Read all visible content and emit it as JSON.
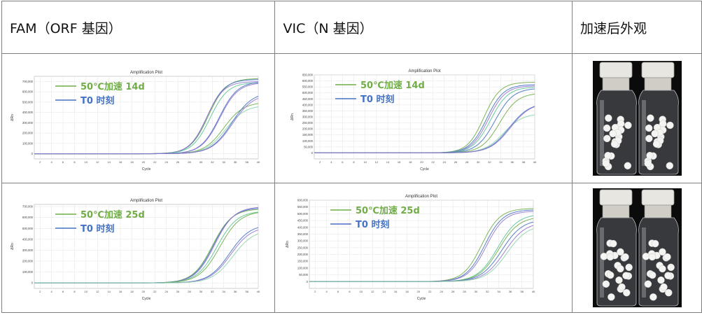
{
  "header": {
    "col1": "FAM（ORF 基因）",
    "col2": "VIC（N  基因）",
    "col3": "加速后外观"
  },
  "legend_colors": {
    "accelerated": "#70ad47",
    "baseline": "#4472c4"
  },
  "photo_alt": "bottles-of-white-tablets",
  "chart_data": [
    {
      "type": "line",
      "title": "Amplification Plot",
      "xlabel": "Cycle",
      "ylabel": "ΔRn",
      "xlim": [
        1,
        40
      ],
      "ylim": [
        -50000,
        750000
      ],
      "xticks": [
        "2",
        "4",
        "6",
        "8",
        "10",
        "12",
        "14",
        "16",
        "18",
        "20",
        "22",
        "24",
        "26",
        "28",
        "30",
        "32",
        "34",
        "36",
        "38",
        "40"
      ],
      "yticks": [
        "0",
        "100,000",
        "200,000",
        "300,000",
        "400,000",
        "500,000",
        "600,000",
        "700,000"
      ],
      "ytick_values": [
        0,
        100000,
        200000,
        300000,
        400000,
        500000,
        600000,
        700000
      ],
      "legend": [
        {
          "label": "50℃加速 14d",
          "color": "#70ad47"
        },
        {
          "label": "T0 时刻",
          "color": "#4472c4"
        }
      ],
      "series": [
        {
          "color": "#70ad47",
          "plateau": 730000,
          "midpoint": 31.3,
          "slope": 1.55
        },
        {
          "color": "#4472c4",
          "plateau": 720000,
          "midpoint": 31.1,
          "slope": 1.5
        },
        {
          "color": "#9575cd",
          "plateau": 700000,
          "midpoint": 31.0,
          "slope": 1.5
        },
        {
          "color": "#56c596",
          "plateau": 690000,
          "midpoint": 31.6,
          "slope": 1.55
        },
        {
          "color": "#4472c4",
          "plateau": 700000,
          "midpoint": 33.2,
          "slope": 1.6
        },
        {
          "color": "#9575cd",
          "plateau": 690000,
          "midpoint": 33.3,
          "slope": 1.6
        },
        {
          "color": "#70ad47",
          "plateau": 500000,
          "midpoint": 34.0,
          "slope": 1.7
        },
        {
          "color": "#8bd5a8",
          "plateau": 470000,
          "midpoint": 34.3,
          "slope": 1.7
        },
        {
          "color": "#4472c4",
          "plateau": 600000,
          "midpoint": 35.4,
          "slope": 1.8
        },
        {
          "color": "#9575cd",
          "plateau": 580000,
          "midpoint": 35.5,
          "slope": 1.8
        }
      ]
    },
    {
      "type": "line",
      "title": "Amplification Plot",
      "xlabel": "Cycle",
      "ylabel": "ΔRn",
      "xlim": [
        1,
        40
      ],
      "ylim": [
        -50000,
        650000
      ],
      "xticks": [
        "2",
        "4",
        "6",
        "8",
        "10",
        "12",
        "14",
        "16",
        "18",
        "20",
        "22",
        "24",
        "26",
        "28",
        "30",
        "32",
        "34",
        "36",
        "38",
        "40"
      ],
      "yticks": [
        "0",
        "50,000",
        "100,000",
        "150,000",
        "200,000",
        "250,000",
        "300,000",
        "350,000",
        "400,000",
        "450,000",
        "500,000",
        "550,000",
        "600,000",
        "650,000"
      ],
      "ytick_values": [
        0,
        50000,
        100000,
        150000,
        200000,
        250000,
        300000,
        350000,
        400000,
        450000,
        500000,
        550000,
        600000,
        650000
      ],
      "legend": [
        {
          "label": "50℃加速 14d",
          "color": "#70ad47"
        },
        {
          "label": "T0 时刻",
          "color": "#4472c4"
        }
      ],
      "series": [
        {
          "color": "#70ad47",
          "plateau": 590000,
          "midpoint": 31.0,
          "slope": 1.45
        },
        {
          "color": "#4472c4",
          "plateau": 570000,
          "midpoint": 31.5,
          "slope": 1.5
        },
        {
          "color": "#9575cd",
          "plateau": 560000,
          "midpoint": 31.8,
          "slope": 1.5
        },
        {
          "color": "#56c596",
          "plateau": 550000,
          "midpoint": 32.2,
          "slope": 1.55
        },
        {
          "color": "#4472c4",
          "plateau": 540000,
          "midpoint": 33.0,
          "slope": 1.6
        },
        {
          "color": "#70ad47",
          "plateau": 500000,
          "midpoint": 33.8,
          "slope": 1.6
        },
        {
          "color": "#8bd5a8",
          "plateau": 330000,
          "midpoint": 34.5,
          "slope": 1.7
        },
        {
          "color": "#4472c4",
          "plateau": 420000,
          "midpoint": 35.5,
          "slope": 1.8
        },
        {
          "color": "#9575cd",
          "plateau": 420000,
          "midpoint": 35.7,
          "slope": 1.8
        }
      ]
    },
    {
      "type": "line",
      "title": "Amplification Plot",
      "xlabel": "Cycle",
      "ylabel": "ΔRn",
      "xlim": [
        1,
        40
      ],
      "ylim": [
        -50000,
        720000
      ],
      "xticks": [
        "2",
        "4",
        "6",
        "8",
        "10",
        "12",
        "14",
        "16",
        "18",
        "20",
        "22",
        "24",
        "26",
        "28",
        "30",
        "32",
        "34",
        "36",
        "38",
        "40"
      ],
      "yticks": [
        "0",
        "100,000",
        "200,000",
        "300,000",
        "400,000",
        "500,000",
        "600,000",
        "700,000"
      ],
      "ytick_values": [
        0,
        100000,
        200000,
        300000,
        400000,
        500000,
        600000,
        700000
      ],
      "legend": [
        {
          "label": "50℃加速 25d",
          "color": "#70ad47"
        },
        {
          "label": "T0 时刻",
          "color": "#4472c4"
        }
      ],
      "series": [
        {
          "color": "#70ad47",
          "plateau": 680000,
          "midpoint": 32.0,
          "slope": 1.7
        },
        {
          "color": "#4472c4",
          "plateau": 690000,
          "midpoint": 32.2,
          "slope": 1.7
        },
        {
          "color": "#9575cd",
          "plateau": 700000,
          "midpoint": 32.4,
          "slope": 1.7
        },
        {
          "color": "#56c596",
          "plateau": 660000,
          "midpoint": 32.8,
          "slope": 1.75
        },
        {
          "color": "#70ad47",
          "plateau": 660000,
          "midpoint": 33.3,
          "slope": 1.8
        },
        {
          "color": "#4472c4",
          "plateau": 540000,
          "midpoint": 35.0,
          "slope": 1.8
        },
        {
          "color": "#9575cd",
          "plateau": 520000,
          "midpoint": 35.2,
          "slope": 1.8
        },
        {
          "color": "#8bd5a8",
          "plateau": 490000,
          "midpoint": 35.6,
          "slope": 1.8
        }
      ]
    },
    {
      "type": "line",
      "title": "Amplification Plot",
      "xlabel": "Cycle",
      "ylabel": "ΔRn",
      "xlim": [
        1,
        40
      ],
      "ylim": [
        -50000,
        600000
      ],
      "xticks": [
        "2",
        "4",
        "6",
        "8",
        "10",
        "12",
        "14",
        "16",
        "18",
        "20",
        "22",
        "24",
        "26",
        "28",
        "30",
        "32",
        "34",
        "36",
        "38",
        "40"
      ],
      "yticks": [
        "0",
        "50,000",
        "100,000",
        "150,000",
        "200,000",
        "250,000",
        "300,000",
        "350,000",
        "400,000",
        "450,000",
        "500,000",
        "550,000",
        "600,000"
      ],
      "ytick_values": [
        0,
        50000,
        100000,
        150000,
        200000,
        250000,
        300000,
        350000,
        400000,
        450000,
        500000,
        550000,
        600000
      ],
      "legend": [
        {
          "label": "50℃加速 25d",
          "color": "#70ad47"
        },
        {
          "label": "T0 时刻",
          "color": "#4472c4"
        }
      ],
      "series": [
        {
          "color": "#70ad47",
          "plateau": 540000,
          "midpoint": 31.0,
          "slope": 1.6
        },
        {
          "color": "#4472c4",
          "plateau": 530000,
          "midpoint": 31.5,
          "slope": 1.6
        },
        {
          "color": "#9575cd",
          "plateau": 520000,
          "midpoint": 31.8,
          "slope": 1.6
        },
        {
          "color": "#56c596",
          "plateau": 500000,
          "midpoint": 33.8,
          "slope": 1.75
        },
        {
          "color": "#70ad47",
          "plateau": 480000,
          "midpoint": 34.0,
          "slope": 1.75
        },
        {
          "color": "#4472c4",
          "plateau": 460000,
          "midpoint": 34.5,
          "slope": 1.8
        },
        {
          "color": "#9575cd",
          "plateau": 440000,
          "midpoint": 35.0,
          "slope": 1.8
        },
        {
          "color": "#8bd5a8",
          "plateau": 420000,
          "midpoint": 35.4,
          "slope": 1.8
        }
      ]
    }
  ]
}
